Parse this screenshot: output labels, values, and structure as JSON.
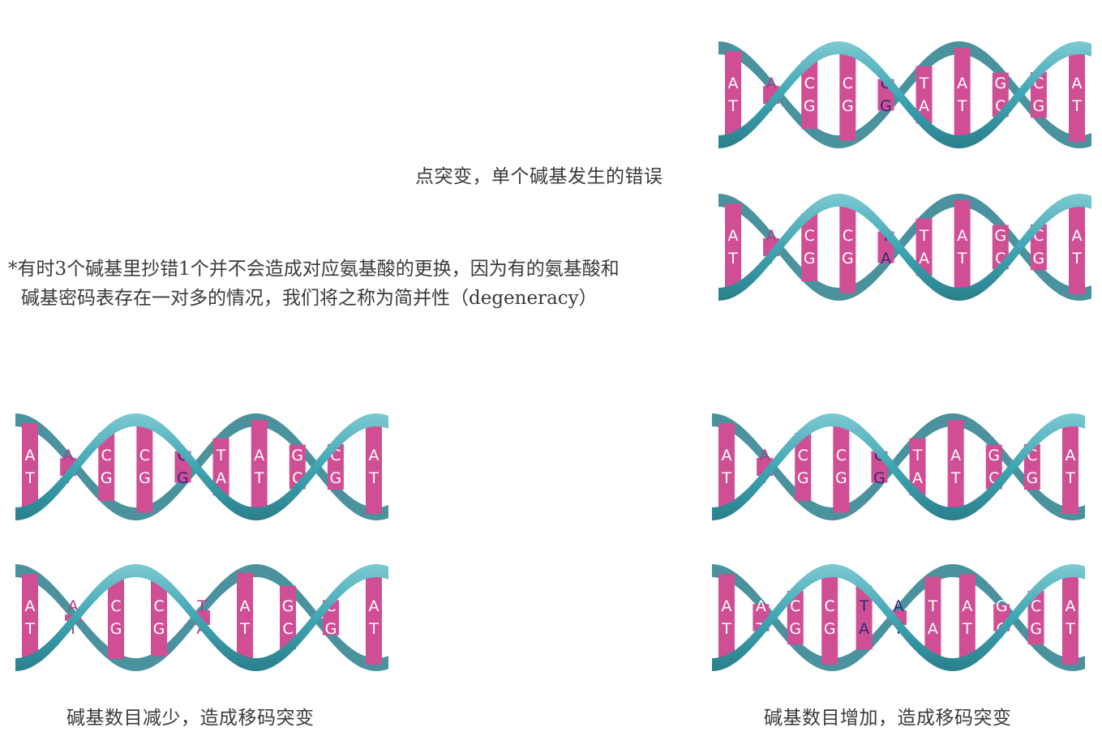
{
  "captions": {
    "point_mutation": "点突变，单个碱基发生的错误",
    "deletion": "碱基数目减少，造成移码突变",
    "insertion": "碱基数目增加，造成移码突变"
  },
  "note": {
    "line1": "*有时3个碱基里抄错1个并不会造成对应氨基酸的更换，因为有的氨基酸和",
    "line2": "碱基密码表存在一对多的情况，我们将之称为简并性（degeneracy）"
  },
  "colors": {
    "ribbon": "#3fa6b3",
    "ribbon_dark": "#2a7f8c",
    "rung": "#d04f94",
    "base_text": "#b23a86",
    "mutated_text": "#2c2a7a"
  },
  "helices": [
    {
      "id": "top-original",
      "pairs": [
        [
          "A",
          "T"
        ],
        [
          "A",
          "T"
        ],
        [
          "C",
          "G"
        ],
        [
          "C",
          "G"
        ],
        [
          "C",
          "G"
        ],
        [
          "T",
          "A"
        ],
        [
          "A",
          "T"
        ],
        [
          "G",
          "C"
        ],
        [
          "C",
          "G"
        ],
        [
          "A",
          "T"
        ]
      ],
      "highlight": [
        4
      ]
    },
    {
      "id": "top-mutated",
      "pairs": [
        [
          "A",
          "T"
        ],
        [
          "A",
          "T"
        ],
        [
          "C",
          "G"
        ],
        [
          "C",
          "G"
        ],
        [
          "T",
          "A"
        ],
        [
          "T",
          "A"
        ],
        [
          "A",
          "T"
        ],
        [
          "G",
          "C"
        ],
        [
          "C",
          "G"
        ],
        [
          "A",
          "T"
        ]
      ],
      "highlight": [
        4
      ]
    },
    {
      "id": "left-original",
      "pairs": [
        [
          "A",
          "T"
        ],
        [
          "A",
          "T"
        ],
        [
          "C",
          "G"
        ],
        [
          "C",
          "G"
        ],
        [
          "C",
          "G"
        ],
        [
          "T",
          "A"
        ],
        [
          "A",
          "T"
        ],
        [
          "G",
          "C"
        ],
        [
          "C",
          "G"
        ],
        [
          "A",
          "T"
        ]
      ],
      "highlight": [
        4
      ]
    },
    {
      "id": "left-deleted",
      "pairs": [
        [
          "A",
          "T"
        ],
        [
          "A",
          "T"
        ],
        [
          "C",
          "G"
        ],
        [
          "C",
          "G"
        ],
        [
          "T",
          "A"
        ],
        [
          "A",
          "T"
        ],
        [
          "G",
          "C"
        ],
        [
          "C",
          "G"
        ],
        [
          "A",
          "T"
        ]
      ],
      "highlight": []
    },
    {
      "id": "right-original",
      "pairs": [
        [
          "A",
          "T"
        ],
        [
          "A",
          "T"
        ],
        [
          "C",
          "G"
        ],
        [
          "C",
          "G"
        ],
        [
          "C",
          "G"
        ],
        [
          "T",
          "A"
        ],
        [
          "A",
          "T"
        ],
        [
          "G",
          "C"
        ],
        [
          "C",
          "G"
        ],
        [
          "A",
          "T"
        ]
      ],
      "highlight": [
        4
      ]
    },
    {
      "id": "right-inserted",
      "pairs": [
        [
          "A",
          "T"
        ],
        [
          "A",
          "T"
        ],
        [
          "C",
          "G"
        ],
        [
          "C",
          "G"
        ],
        [
          "T",
          "A"
        ],
        [
          "A",
          "T"
        ],
        [
          "T",
          "A"
        ],
        [
          "A",
          "T"
        ],
        [
          "G",
          "C"
        ],
        [
          "C",
          "G"
        ],
        [
          "A",
          "T"
        ]
      ],
      "highlight": [
        4,
        5
      ]
    }
  ]
}
